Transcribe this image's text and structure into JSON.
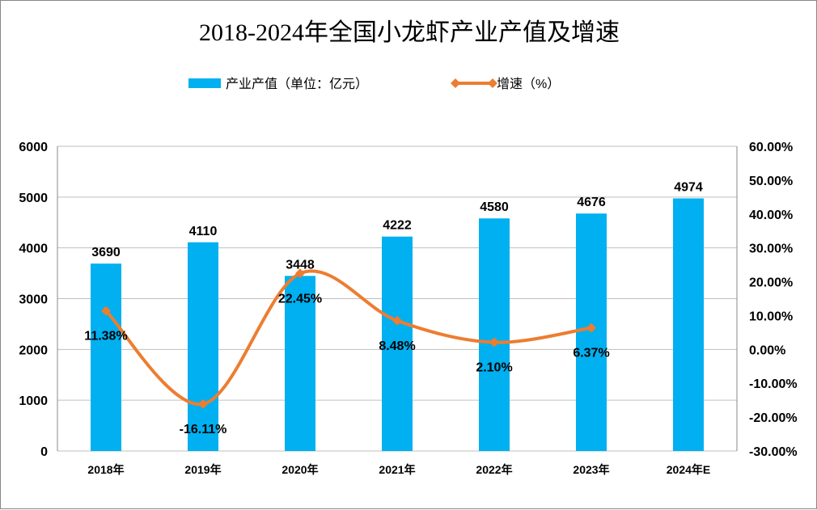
{
  "chart_data": {
    "type": "bar+line",
    "title": "2018-2024年全国小龙虾产业产值及增速",
    "categories": [
      "2018年",
      "2019年",
      "2020年",
      "2021年",
      "2022年",
      "2023年",
      "2024年E"
    ],
    "series": [
      {
        "name": "产业产值（单位：亿元）",
        "type": "bar",
        "axis": "left",
        "color": "#00B0F0",
        "values": [
          3690,
          4110,
          3448,
          4222,
          4580,
          4676,
          4974
        ],
        "labels": [
          "3690",
          "4110",
          "3448",
          "4222",
          "4580",
          "4676",
          "4974"
        ]
      },
      {
        "name": "增速（%）",
        "type": "line",
        "axis": "right",
        "color": "#ED7D31",
        "marker": "diamond",
        "values": [
          11.38,
          -16.11,
          22.45,
          8.48,
          2.1,
          6.37,
          null
        ],
        "labels": [
          "11.38%",
          "-16.11%",
          "22.45%",
          "8.48%",
          "2.10%",
          "6.37%",
          ""
        ]
      }
    ],
    "y_left": {
      "range": [
        0,
        6000
      ],
      "ticks": [
        "0",
        "1000",
        "2000",
        "3000",
        "4000",
        "5000",
        "6000"
      ]
    },
    "y_right": {
      "range": [
        -30,
        60
      ],
      "ticks": [
        "-30.00%",
        "-20.00%",
        "-10.00%",
        "0.00%",
        "10.00%",
        "20.00%",
        "30.00%",
        "40.00%",
        "50.00%",
        "60.00%"
      ]
    },
    "grid": true,
    "legend": "top"
  }
}
